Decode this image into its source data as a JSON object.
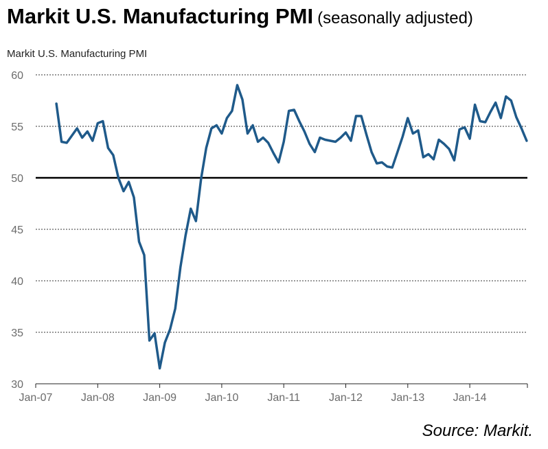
{
  "header": {
    "title": "Markit U.S. Manufacturing PMI",
    "subtitle": "(seasonally adjusted)"
  },
  "source": "Source: Markit.",
  "colors": {
    "line": "#1f5a8a",
    "grid": "#333333",
    "threshold": "#000000",
    "ticks": "#6b6b6b"
  },
  "chart_data": {
    "type": "line",
    "title": "Markit U.S. Manufacturing PMI",
    "ylabel": "Markit U.S. Manufacturing PMI",
    "xlabel": "",
    "ylim": [
      30,
      60
    ],
    "yticks": [
      30,
      35,
      40,
      45,
      50,
      55,
      60
    ],
    "xticks": [
      "Jan-07",
      "Jan-08",
      "Jan-09",
      "Jan-10",
      "Jan-11",
      "Jan-12",
      "Jan-13",
      "Jan-14"
    ],
    "x_start": "2007-05",
    "x_end": "2014-10",
    "threshold": 50,
    "grid": "horizontal dashed",
    "series": [
      {
        "values": [
          57.2,
          53.5,
          53.4,
          54.1,
          54.8,
          53.9,
          54.5,
          53.6,
          55.3,
          55.5,
          52.9,
          52.2,
          50.0,
          48.7,
          49.6,
          48.1,
          43.8,
          42.5,
          34.2,
          34.9,
          31.5,
          34.0,
          35.3,
          37.3,
          41.3,
          44.4,
          47.0,
          45.8,
          49.9,
          52.9,
          54.8,
          55.1,
          54.3,
          55.8,
          56.5,
          59.0,
          57.6,
          54.3,
          55.1,
          53.5,
          53.9,
          53.4,
          52.4,
          51.5,
          53.5,
          56.5,
          56.6,
          55.5,
          54.5,
          53.3,
          52.5,
          53.9,
          53.7,
          53.6,
          53.5,
          53.9,
          54.4,
          53.6,
          56.0,
          56.0,
          54.2,
          52.5,
          51.4,
          51.5,
          51.1,
          51.0,
          52.5,
          54.0,
          55.8,
          54.3,
          54.6,
          52.0,
          52.3,
          51.8,
          53.7,
          53.3,
          52.8,
          51.7,
          54.7,
          54.9,
          53.8,
          57.1,
          55.5,
          55.4,
          56.4,
          57.3,
          55.8,
          57.9,
          57.5,
          55.9,
          54.8,
          53.6
        ]
      }
    ]
  }
}
